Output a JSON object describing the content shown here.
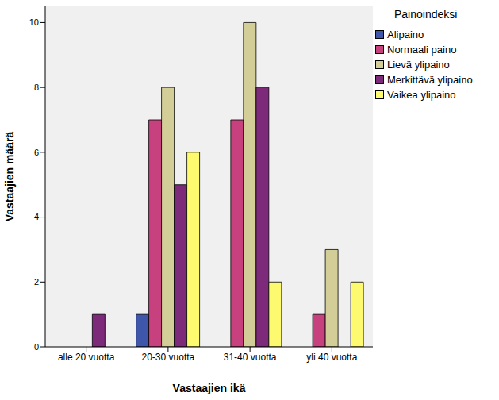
{
  "chart_data": {
    "type": "bar",
    "x_label": "Vastaajien ikä",
    "y_label": "Vastaajien määrä",
    "legend_title": "Painoindeksi",
    "legend": "right",
    "grid": false,
    "categories": [
      "alle 20 vuotta",
      "20-30 vuotta",
      "31-40 vuotta",
      "yli 40 vuotta"
    ],
    "series": [
      {
        "name": "Alipaino",
        "color": "#3f57ab",
        "values": [
          0,
          1,
          0,
          0
        ]
      },
      {
        "name": "Normaali paino",
        "color": "#c8417f",
        "values": [
          0,
          7,
          7,
          1
        ]
      },
      {
        "name": "Lievä ylipaino",
        "color": "#d3ce98",
        "values": [
          0,
          8,
          10,
          3
        ]
      },
      {
        "name": "Merkittävä ylipaino",
        "color": "#7e2a7a",
        "values": [
          1,
          5,
          8,
          0
        ]
      },
      {
        "name": "Vaikea ylipaino",
        "color": "#fdfa6f",
        "values": [
          0,
          6,
          2,
          2
        ]
      }
    ],
    "ylim": [
      0,
      10.5
    ],
    "yticks": [
      0,
      2,
      4,
      6,
      8,
      10
    ]
  }
}
